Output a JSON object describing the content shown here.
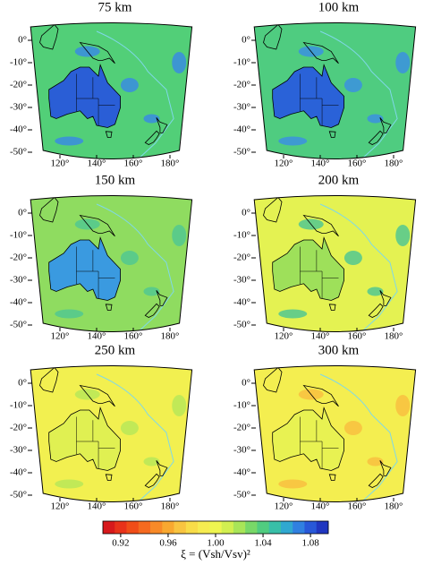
{
  "panels": [
    {
      "title": "75 km",
      "ocean_color": "#52cf78",
      "continent_color": "#2a5ed6",
      "anomaly_color": "#3a8ce0"
    },
    {
      "title": "100 km",
      "ocean_color": "#4fcc80",
      "continent_color": "#2a62d8",
      "anomaly_color": "#3b90e0"
    },
    {
      "title": "150 km",
      "ocean_color": "#8fdc60",
      "continent_color": "#3a9ae0",
      "anomaly_color": "#52c890"
    },
    {
      "title": "200 km",
      "ocean_color": "#e4f252",
      "continent_color": "#9ee05a",
      "anomaly_color": "#52c890"
    },
    {
      "title": "250 km",
      "ocean_color": "#f2f050",
      "continent_color": "#e0f052",
      "anomaly_color": "#b8e858"
    },
    {
      "title": "300 km",
      "ocean_color": "#f4ee50",
      "continent_color": "#e8f252",
      "anomaly_color": "#f8c040"
    }
  ],
  "axes": {
    "ylim": [
      -52,
      6
    ],
    "xlim": [
      104,
      192
    ],
    "yticks": [
      {
        "value": 0,
        "label": "0°"
      },
      {
        "value": -10,
        "label": "-10°"
      },
      {
        "value": -20,
        "label": "-20°"
      },
      {
        "value": -30,
        "label": "-30°"
      },
      {
        "value": -40,
        "label": "-40°"
      },
      {
        "value": -50,
        "label": "-50°"
      }
    ],
    "xticks": [
      {
        "value": 120,
        "label": "120°"
      },
      {
        "value": 140,
        "label": "140°"
      },
      {
        "value": 160,
        "label": "160°"
      },
      {
        "value": 180,
        "label": "180°"
      }
    ]
  },
  "colorbar": {
    "label": "ξ = (Vsh/Vsv)²",
    "lim": [
      0.905,
      1.095
    ],
    "ticks": [
      0.92,
      0.96,
      {
        "value": 1,
        "label": "1.00"
      },
      1.04,
      1.08
    ],
    "colors": [
      "#d7191c",
      "#e8321a",
      "#f04d18",
      "#f56a20",
      "#f88a28",
      "#f8a830",
      "#f8c440",
      "#f8dc48",
      "#f6ec50",
      "#eef550",
      "#d2ef50",
      "#a8e558",
      "#78d868",
      "#50cc80",
      "#38bfa8",
      "#30a8d0",
      "#3080e0",
      "#2858d8",
      "#2036c0"
    ]
  }
}
